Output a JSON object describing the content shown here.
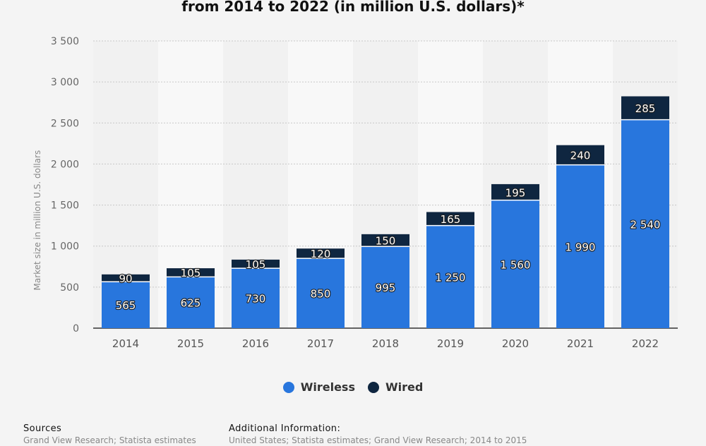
{
  "colors": {
    "wireless": "#2876dd",
    "wired": "#0f2640",
    "band_light": "#f8f8f8",
    "band_dark": "#f1f1f1"
  },
  "chart_data": {
    "type": "bar",
    "stacked": true,
    "title": "from 2014 to 2022 (in million U.S. dollars)*",
    "ylabel": "Market size in million U.S. dollars",
    "xlabel": "",
    "ylim": [
      0,
      3500
    ],
    "yticks": [
      "0",
      "500",
      "1 000",
      "1 500",
      "2 000",
      "2 500",
      "3 000",
      "3 500"
    ],
    "ytick_values": [
      0,
      500,
      1000,
      1500,
      2000,
      2500,
      3000,
      3500
    ],
    "grid": true,
    "legend_position": "bottom-center",
    "categories": [
      "2014",
      "2015",
      "2016",
      "2017",
      "2018",
      "2019",
      "2020",
      "2021",
      "2022"
    ],
    "series": [
      {
        "name": "Wireless",
        "values": [
          565,
          625,
          730,
          850,
          995,
          1250,
          1560,
          1990,
          2540
        ],
        "labels": [
          "565",
          "625",
          "730",
          "850",
          "995",
          "1 250",
          "1 560",
          "1 990",
          "2 540"
        ]
      },
      {
        "name": "Wired",
        "values": [
          90,
          105,
          105,
          120,
          150,
          165,
          195,
          240,
          285
        ],
        "labels": [
          "90",
          "105",
          "105",
          "120",
          "150",
          "165",
          "195",
          "240",
          "285"
        ]
      }
    ]
  },
  "footer": {
    "sources_heading": "Sources",
    "sources_text": "Grand View Research; Statista estimates",
    "additional_heading": "Additional Information:",
    "additional_text": "United States; Statista estimates; Grand View Research; 2014 to 2015"
  }
}
